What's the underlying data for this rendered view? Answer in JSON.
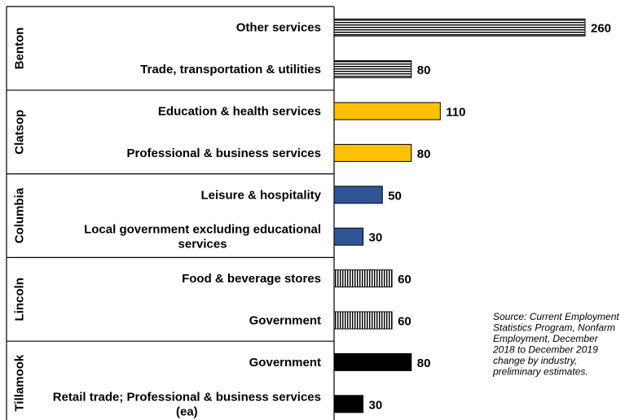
{
  "chart_data": {
    "type": "bar",
    "orientation": "horizontal",
    "grid": false,
    "legend": "none",
    "xlim": [
      0,
      260
    ],
    "groups": [
      {
        "name": "Benton",
        "pattern": "horizontal-lines",
        "color": "#000000",
        "bars": [
          {
            "label": "Other services",
            "value": 260
          },
          {
            "label": "Trade, transportation & utilities",
            "value": 80
          }
        ]
      },
      {
        "name": "Clatsop",
        "pattern": "solid",
        "color": "#FFC000",
        "bars": [
          {
            "label": "Education & health services",
            "value": 110
          },
          {
            "label": "Professional & business services",
            "value": 80
          }
        ]
      },
      {
        "name": "Columbia",
        "pattern": "solid",
        "color": "#2F5597",
        "bars": [
          {
            "label": "Leisure & hospitality",
            "value": 50
          },
          {
            "label": "Local government excluding educational services",
            "value": 30
          }
        ]
      },
      {
        "name": "Lincoln",
        "pattern": "vertical-lines",
        "color": "#000000",
        "bars": [
          {
            "label": "Food & beverage stores",
            "value": 60
          },
          {
            "label": "Government",
            "value": 60
          }
        ]
      },
      {
        "name": "Tillamook",
        "pattern": "solid",
        "color": "#000000",
        "bars": [
          {
            "label": "Government",
            "value": 80
          },
          {
            "label": "Retail trade; Professional & business services (ea)",
            "value": 30
          }
        ]
      }
    ],
    "source_note": "Source: Current Employment Statistics Program, Nonfarm Employment, December 2018 to December 2019 change by industry, preliminary estimates."
  }
}
